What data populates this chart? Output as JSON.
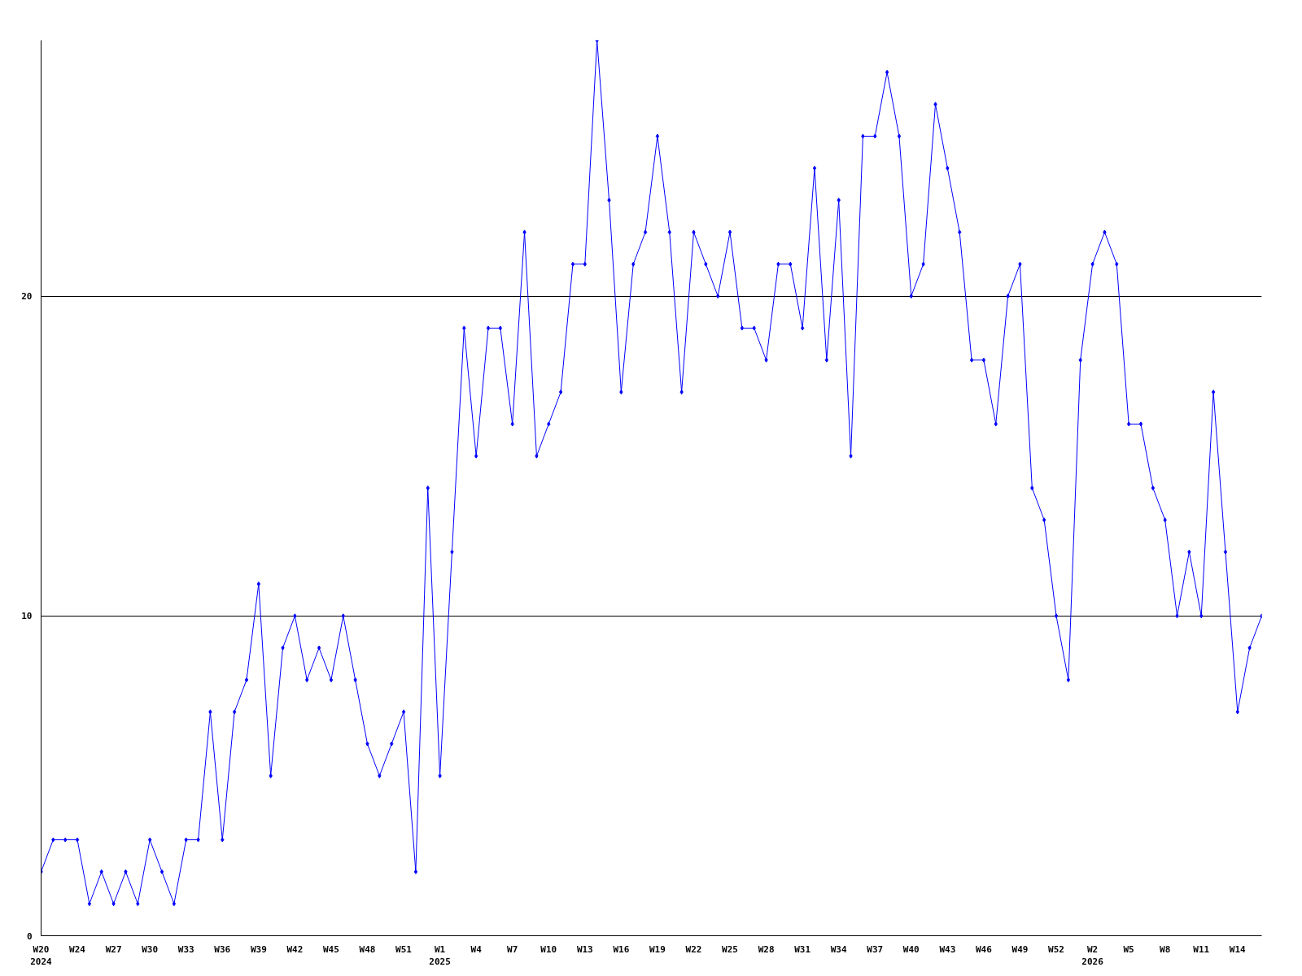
{
  "chart_data": {
    "type": "line",
    "categories": [
      "W20\n2024",
      null,
      null,
      "W24",
      null,
      null,
      "W27",
      null,
      null,
      "W30",
      null,
      null,
      "W33",
      null,
      null,
      "W36",
      null,
      null,
      "W39",
      null,
      null,
      "W42",
      null,
      null,
      "W45",
      null,
      null,
      "W48",
      null,
      null,
      "W51",
      null,
      null,
      "W1\n2025",
      null,
      null,
      "W4",
      null,
      null,
      "W7",
      null,
      null,
      "W10",
      null,
      null,
      "W13",
      null,
      null,
      "W16",
      null,
      null,
      "W19",
      null,
      null,
      "W22",
      null,
      null,
      "W25",
      null,
      null,
      "W28",
      null,
      null,
      "W31",
      null,
      null,
      "W34",
      null,
      null,
      "W37",
      null,
      null,
      "W40",
      null,
      null,
      "W43",
      null,
      null,
      "W46",
      null,
      null,
      "W49",
      null,
      null,
      "W52",
      null,
      null,
      "W2\n2026",
      null,
      null,
      "W5",
      null,
      null,
      "W8",
      null,
      null,
      "W11",
      null,
      null,
      "W14",
      null,
      null
    ],
    "series": [
      {
        "color": "#0000ff",
        "values": [
          2,
          3,
          3,
          3,
          1,
          2,
          1,
          2,
          1,
          3,
          2,
          1,
          3,
          3,
          7,
          3,
          7,
          8,
          11,
          5,
          9,
          10,
          8,
          9,
          8,
          10,
          8,
          6,
          5,
          6,
          7,
          2,
          14,
          5,
          12,
          19,
          15,
          19,
          19,
          16,
          22,
          15,
          16,
          17,
          21,
          21,
          28,
          23,
          17,
          21,
          22,
          25,
          22,
          17,
          22,
          21,
          20,
          22,
          19,
          19,
          18,
          21,
          21,
          19,
          24,
          18,
          23,
          15,
          25,
          25,
          27,
          25,
          20,
          21,
          26,
          24,
          22,
          18,
          18,
          16,
          20,
          21,
          14,
          13,
          10,
          8,
          18,
          21,
          22,
          21,
          16,
          16,
          14,
          13,
          10,
          12,
          10,
          17,
          12,
          7,
          9,
          10
        ]
      }
    ],
    "ylim": [
      0,
      28
    ],
    "yticks": [
      0,
      10,
      20
    ],
    "grid": "y",
    "marker": "diamond",
    "line_style": "solid"
  }
}
